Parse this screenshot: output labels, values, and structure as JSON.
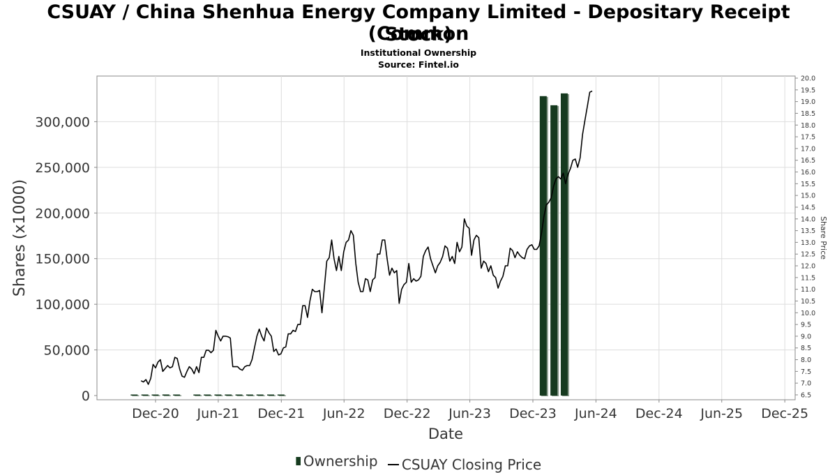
{
  "header": {
    "title_line1": "CSUAY / China Shenhua Energy Company Limited - Depositary Receipt (Common",
    "title_line2": "Stock)",
    "subtitle_line1": "Institutional Ownership",
    "subtitle_line2": "Source: Fintel.io"
  },
  "legend": {
    "ownership_label": "Ownership",
    "price_label": "CSUAY Closing Price"
  },
  "colors": {
    "bar": "#163a1f",
    "bar_shadow": "#8a9a8c",
    "line": "#000000",
    "grid": "#dddddd",
    "axis_text": "#333333"
  },
  "chart_data": {
    "type": "bar",
    "xlabel": "Date",
    "ylabel_left": "Shares (x1000)",
    "ylabel_right": "Share Price",
    "y_left_ticks": [
      0,
      50000,
      100000,
      150000,
      200000,
      250000,
      300000
    ],
    "y_left_tick_labels": [
      "0",
      "50,000",
      "100,000",
      "150,000",
      "200,000",
      "250,000",
      "300,000"
    ],
    "y_right_range": [
      6.5,
      20.0
    ],
    "y_right_ticks": [
      6.5,
      7.0,
      7.5,
      8.0,
      8.5,
      9.0,
      9.5,
      10.0,
      10.5,
      11.0,
      11.5,
      12.0,
      12.5,
      13.0,
      13.5,
      14.0,
      14.5,
      15.0,
      15.5,
      16.0,
      16.5,
      17.0,
      17.5,
      18.0,
      18.5,
      19.0,
      19.5,
      20.0
    ],
    "y_right_tick_labels": [
      "6.5",
      "7.0",
      "7.5",
      "8.0",
      "8.5",
      "9.0",
      "9.5",
      "10.0",
      "10.5",
      "11.0",
      "11.5",
      "12.0",
      "12.5",
      "13.0",
      "13.5",
      "14.0",
      "14.5",
      "15.0",
      "15.5",
      "16.0",
      "16.5",
      "17.0",
      "17.5",
      "18.0",
      "18.5",
      "19.0",
      "19.5",
      "20.0"
    ],
    "x_ticks": [
      "2020-12-01",
      "2021-06-01",
      "2021-12-01",
      "2022-06-01",
      "2022-12-01",
      "2023-06-01",
      "2023-12-01",
      "2024-06-01",
      "2024-12-01",
      "2025-06-01",
      "2025-12-01"
    ],
    "x_tick_labels": [
      "Dec-20",
      "Jun-21",
      "Dec-21",
      "Jun-22",
      "Dec-22",
      "Jun-23",
      "Dec-23",
      "Jun-24",
      "Dec-24",
      "Jun-25",
      "Dec-25"
    ],
    "x_range": [
      "2020-06-14",
      "2025-12-31"
    ],
    "grid": true,
    "legend_position": "bottom-center",
    "series": [
      {
        "name": "Ownership",
        "type": "bar",
        "axis": "left",
        "points": [
          {
            "x": "2020-09-30",
            "y": 400
          },
          {
            "x": "2020-10-31",
            "y": 600
          },
          {
            "x": "2020-11-30",
            "y": 500
          },
          {
            "x": "2020-12-31",
            "y": 1200
          },
          {
            "x": "2021-01-31",
            "y": 1000
          },
          {
            "x": "2021-03-31",
            "y": 600
          },
          {
            "x": "2021-04-30",
            "y": 500
          },
          {
            "x": "2021-05-31",
            "y": 500
          },
          {
            "x": "2021-06-30",
            "y": 500
          },
          {
            "x": "2021-07-31",
            "y": 500
          },
          {
            "x": "2021-08-31",
            "y": 500
          },
          {
            "x": "2021-09-30",
            "y": 500
          },
          {
            "x": "2021-10-31",
            "y": 500
          },
          {
            "x": "2021-11-30",
            "y": 500
          },
          {
            "x": "2023-12-31",
            "y": 328000
          },
          {
            "x": "2024-01-31",
            "y": 318000
          },
          {
            "x": "2024-03-01",
            "y": 331000
          }
        ]
      },
      {
        "name": "CSUAY Closing Price",
        "type": "line",
        "axis": "right",
        "points": [
          {
            "x": "2020-10-20",
            "y": 7.1
          },
          {
            "x": "2020-10-27",
            "y": 7.05
          },
          {
            "x": "2020-11-03",
            "y": 7.15
          },
          {
            "x": "2020-11-10",
            "y": 6.95
          },
          {
            "x": "2020-11-17",
            "y": 7.2
          },
          {
            "x": "2020-11-24",
            "y": 7.8
          },
          {
            "x": "2020-12-01",
            "y": 7.65
          },
          {
            "x": "2020-12-08",
            "y": 7.9
          },
          {
            "x": "2020-12-15",
            "y": 8.0
          },
          {
            "x": "2020-12-22",
            "y": 7.5
          },
          {
            "x": "2021-01-05",
            "y": 7.75
          },
          {
            "x": "2021-01-12",
            "y": 7.65
          },
          {
            "x": "2021-01-19",
            "y": 7.7
          },
          {
            "x": "2021-01-26",
            "y": 8.1
          },
          {
            "x": "2021-02-02",
            "y": 8.05
          },
          {
            "x": "2021-02-09",
            "y": 7.6
          },
          {
            "x": "2021-02-16",
            "y": 7.3
          },
          {
            "x": "2021-02-23",
            "y": 7.25
          },
          {
            "x": "2021-03-02",
            "y": 7.5
          },
          {
            "x": "2021-03-09",
            "y": 7.7
          },
          {
            "x": "2021-03-16",
            "y": 7.6
          },
          {
            "x": "2021-03-23",
            "y": 7.4
          },
          {
            "x": "2021-03-30",
            "y": 7.7
          },
          {
            "x": "2021-04-06",
            "y": 7.45
          },
          {
            "x": "2021-04-13",
            "y": 8.1
          },
          {
            "x": "2021-04-20",
            "y": 8.1
          },
          {
            "x": "2021-04-27",
            "y": 8.4
          },
          {
            "x": "2021-05-04",
            "y": 8.4
          },
          {
            "x": "2021-05-11",
            "y": 8.3
          },
          {
            "x": "2021-05-18",
            "y": 8.4
          },
          {
            "x": "2021-05-25",
            "y": 9.25
          },
          {
            "x": "2021-06-01",
            "y": 9.0
          },
          {
            "x": "2021-06-08",
            "y": 8.8
          },
          {
            "x": "2021-06-15",
            "y": 9.0
          },
          {
            "x": "2021-06-22",
            "y": 9.0
          },
          {
            "x": "2021-06-29",
            "y": 8.98
          },
          {
            "x": "2021-07-06",
            "y": 8.92
          },
          {
            "x": "2021-07-13",
            "y": 7.7
          },
          {
            "x": "2021-07-20",
            "y": 7.7
          },
          {
            "x": "2021-07-27",
            "y": 7.7
          },
          {
            "x": "2021-08-03",
            "y": 7.6
          },
          {
            "x": "2021-08-10",
            "y": 7.55
          },
          {
            "x": "2021-08-17",
            "y": 7.7
          },
          {
            "x": "2021-08-24",
            "y": 7.75
          },
          {
            "x": "2021-08-31",
            "y": 7.75
          },
          {
            "x": "2021-09-07",
            "y": 8.0
          },
          {
            "x": "2021-09-14",
            "y": 8.5
          },
          {
            "x": "2021-09-21",
            "y": 9.0
          },
          {
            "x": "2021-09-28",
            "y": 9.3
          },
          {
            "x": "2021-10-05",
            "y": 9.0
          },
          {
            "x": "2021-10-12",
            "y": 8.8
          },
          {
            "x": "2021-10-19",
            "y": 9.35
          },
          {
            "x": "2021-10-26",
            "y": 9.15
          },
          {
            "x": "2021-11-02",
            "y": 9.0
          },
          {
            "x": "2021-11-09",
            "y": 8.35
          },
          {
            "x": "2021-11-16",
            "y": 8.45
          },
          {
            "x": "2021-11-23",
            "y": 8.2
          },
          {
            "x": "2021-11-30",
            "y": 8.25
          },
          {
            "x": "2021-12-07",
            "y": 8.5
          },
          {
            "x": "2021-12-14",
            "y": 8.55
          },
          {
            "x": "2021-12-21",
            "y": 9.1
          },
          {
            "x": "2021-12-28",
            "y": 9.1
          },
          {
            "x": "2022-01-04",
            "y": 9.25
          },
          {
            "x": "2022-01-11",
            "y": 9.2
          },
          {
            "x": "2022-01-18",
            "y": 9.5
          },
          {
            "x": "2022-01-25",
            "y": 9.5
          },
          {
            "x": "2022-02-01",
            "y": 10.3
          },
          {
            "x": "2022-02-08",
            "y": 10.3
          },
          {
            "x": "2022-02-15",
            "y": 9.8
          },
          {
            "x": "2022-02-22",
            "y": 10.5
          },
          {
            "x": "2022-03-01",
            "y": 11.0
          },
          {
            "x": "2022-03-08",
            "y": 10.9
          },
          {
            "x": "2022-03-15",
            "y": 10.9
          },
          {
            "x": "2022-03-22",
            "y": 10.95
          },
          {
            "x": "2022-03-29",
            "y": 10.0
          },
          {
            "x": "2022-04-05",
            "y": 11.1
          },
          {
            "x": "2022-04-12",
            "y": 12.2
          },
          {
            "x": "2022-04-19",
            "y": 12.35
          },
          {
            "x": "2022-04-26",
            "y": 13.1
          },
          {
            "x": "2022-05-03",
            "y": 12.3
          },
          {
            "x": "2022-05-10",
            "y": 11.8
          },
          {
            "x": "2022-05-17",
            "y": 12.4
          },
          {
            "x": "2022-05-24",
            "y": 11.8
          },
          {
            "x": "2022-05-31",
            "y": 12.6
          },
          {
            "x": "2022-06-07",
            "y": 13.0
          },
          {
            "x": "2022-06-14",
            "y": 13.1
          },
          {
            "x": "2022-06-21",
            "y": 13.5
          },
          {
            "x": "2022-06-28",
            "y": 13.3
          },
          {
            "x": "2022-07-05",
            "y": 12.1
          },
          {
            "x": "2022-07-12",
            "y": 11.3
          },
          {
            "x": "2022-07-19",
            "y": 10.9
          },
          {
            "x": "2022-07-26",
            "y": 10.9
          },
          {
            "x": "2022-08-02",
            "y": 11.45
          },
          {
            "x": "2022-08-09",
            "y": 11.4
          },
          {
            "x": "2022-08-16",
            "y": 10.9
          },
          {
            "x": "2022-08-23",
            "y": 11.4
          },
          {
            "x": "2022-08-30",
            "y": 11.5
          },
          {
            "x": "2022-09-06",
            "y": 12.5
          },
          {
            "x": "2022-09-13",
            "y": 12.5
          },
          {
            "x": "2022-09-20",
            "y": 13.1
          },
          {
            "x": "2022-09-27",
            "y": 13.1
          },
          {
            "x": "2022-10-04",
            "y": 12.3
          },
          {
            "x": "2022-10-11",
            "y": 11.6
          },
          {
            "x": "2022-10-18",
            "y": 11.9
          },
          {
            "x": "2022-10-25",
            "y": 11.7
          },
          {
            "x": "2022-11-01",
            "y": 11.8
          },
          {
            "x": "2022-11-08",
            "y": 10.4
          },
          {
            "x": "2022-11-15",
            "y": 11.0
          },
          {
            "x": "2022-11-22",
            "y": 11.2
          },
          {
            "x": "2022-11-29",
            "y": 11.3
          },
          {
            "x": "2022-12-06",
            "y": 12.1
          },
          {
            "x": "2022-12-13",
            "y": 11.3
          },
          {
            "x": "2022-12-20",
            "y": 11.45
          },
          {
            "x": "2022-12-27",
            "y": 11.35
          },
          {
            "x": "2023-01-03",
            "y": 11.4
          },
          {
            "x": "2023-01-10",
            "y": 11.55
          },
          {
            "x": "2023-01-17",
            "y": 12.4
          },
          {
            "x": "2023-01-24",
            "y": 12.65
          },
          {
            "x": "2023-01-31",
            "y": 12.8
          },
          {
            "x": "2023-02-07",
            "y": 12.3
          },
          {
            "x": "2023-02-14",
            "y": 12.0
          },
          {
            "x": "2023-02-21",
            "y": 11.7
          },
          {
            "x": "2023-02-28",
            "y": 12.0
          },
          {
            "x": "2023-03-07",
            "y": 12.15
          },
          {
            "x": "2023-03-14",
            "y": 12.4
          },
          {
            "x": "2023-03-21",
            "y": 12.85
          },
          {
            "x": "2023-03-28",
            "y": 12.75
          },
          {
            "x": "2023-04-04",
            "y": 12.2
          },
          {
            "x": "2023-04-11",
            "y": 12.4
          },
          {
            "x": "2023-04-18",
            "y": 12.1
          },
          {
            "x": "2023-04-25",
            "y": 13.0
          },
          {
            "x": "2023-05-02",
            "y": 12.6
          },
          {
            "x": "2023-05-09",
            "y": 12.8
          },
          {
            "x": "2023-05-16",
            "y": 14.0
          },
          {
            "x": "2023-05-23",
            "y": 13.7
          },
          {
            "x": "2023-05-30",
            "y": 13.6
          },
          {
            "x": "2023-06-06",
            "y": 12.45
          },
          {
            "x": "2023-06-13",
            "y": 13.1
          },
          {
            "x": "2023-06-20",
            "y": 13.3
          },
          {
            "x": "2023-06-27",
            "y": 13.2
          },
          {
            "x": "2023-07-04",
            "y": 11.9
          },
          {
            "x": "2023-07-11",
            "y": 12.2
          },
          {
            "x": "2023-07-18",
            "y": 12.1
          },
          {
            "x": "2023-07-25",
            "y": 11.75
          },
          {
            "x": "2023-08-01",
            "y": 12.0
          },
          {
            "x": "2023-08-08",
            "y": 11.6
          },
          {
            "x": "2023-08-15",
            "y": 11.5
          },
          {
            "x": "2023-08-22",
            "y": 11.05
          },
          {
            "x": "2023-08-29",
            "y": 11.35
          },
          {
            "x": "2023-09-05",
            "y": 11.55
          },
          {
            "x": "2023-09-12",
            "y": 12.0
          },
          {
            "x": "2023-09-19",
            "y": 12.0
          },
          {
            "x": "2023-09-26",
            "y": 12.75
          },
          {
            "x": "2023-10-03",
            "y": 12.65
          },
          {
            "x": "2023-10-10",
            "y": 12.35
          },
          {
            "x": "2023-10-17",
            "y": 12.6
          },
          {
            "x": "2023-10-24",
            "y": 12.45
          },
          {
            "x": "2023-10-31",
            "y": 12.35
          },
          {
            "x": "2023-11-07",
            "y": 12.3
          },
          {
            "x": "2023-11-14",
            "y": 12.7
          },
          {
            "x": "2023-11-21",
            "y": 12.85
          },
          {
            "x": "2023-11-28",
            "y": 12.9
          },
          {
            "x": "2023-12-05",
            "y": 12.7
          },
          {
            "x": "2023-12-12",
            "y": 12.7
          },
          {
            "x": "2023-12-19",
            "y": 12.85
          },
          {
            "x": "2023-12-26",
            "y": 13.4
          },
          {
            "x": "2024-01-02",
            "y": 14.1
          },
          {
            "x": "2024-01-09",
            "y": 14.6
          },
          {
            "x": "2024-01-16",
            "y": 14.7
          },
          {
            "x": "2024-01-23",
            "y": 14.9
          },
          {
            "x": "2024-01-30",
            "y": 15.4
          },
          {
            "x": "2024-02-06",
            "y": 15.7
          },
          {
            "x": "2024-02-13",
            "y": 15.8
          },
          {
            "x": "2024-02-20",
            "y": 15.7
          },
          {
            "x": "2024-02-27",
            "y": 15.95
          },
          {
            "x": "2024-03-05",
            "y": 15.5
          },
          {
            "x": "2024-03-12",
            "y": 15.9
          },
          {
            "x": "2024-03-19",
            "y": 16.15
          },
          {
            "x": "2024-03-26",
            "y": 16.5
          },
          {
            "x": "2024-04-02",
            "y": 16.55
          },
          {
            "x": "2024-04-09",
            "y": 16.2
          },
          {
            "x": "2024-04-16",
            "y": 16.6
          },
          {
            "x": "2024-04-23",
            "y": 17.6
          },
          {
            "x": "2024-04-30",
            "y": 18.2
          },
          {
            "x": "2024-05-07",
            "y": 18.8
          },
          {
            "x": "2024-05-14",
            "y": 19.4
          },
          {
            "x": "2024-05-21",
            "y": 19.45
          }
        ]
      }
    ]
  }
}
